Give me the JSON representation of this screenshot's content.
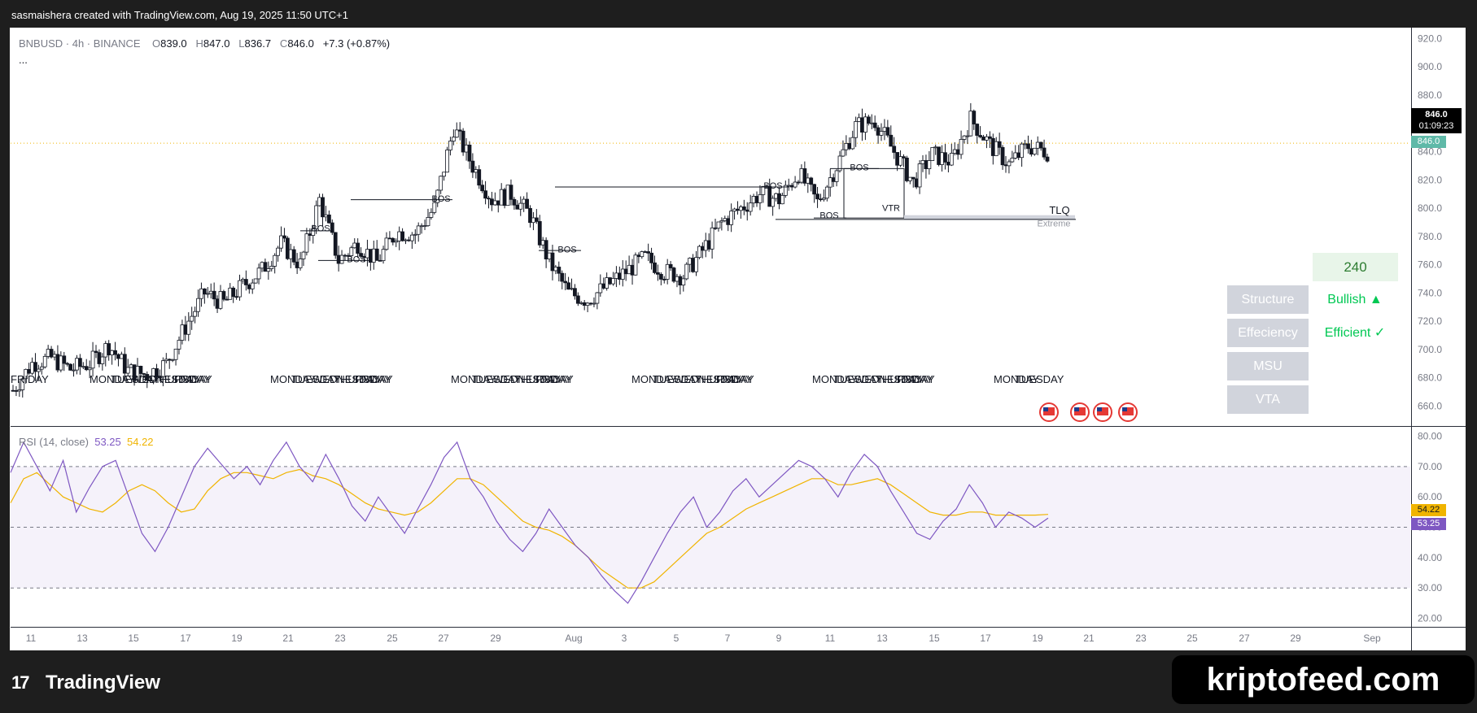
{
  "header": {
    "text": "sasmaishera created with TradingView.com, Aug 19, 2025 11:50 UTC+1"
  },
  "legend": {
    "symbol": "BNBUSD · 4h · BINANCE",
    "o_label": "O",
    "o": "839.0",
    "h_label": "H",
    "h": "847.0",
    "l_label": "L",
    "l": "836.7",
    "c_label": "C",
    "c": "846.0",
    "change": "+7.3 (+0.87%)",
    "more": "..."
  },
  "price_tag": {
    "price": "846.0",
    "countdown": "01:09:23",
    "last": "846.0"
  },
  "rsi_legend": {
    "label": "RSI (14, close)",
    "rsi": "53.25",
    "ma": "54.22"
  },
  "rsi_tags": {
    "ma": "54.22",
    "rsi": "53.25"
  },
  "panel": {
    "timeframe": "240",
    "rows": [
      {
        "label": "Structure",
        "value": "Bullish ▲"
      },
      {
        "label": "Effeciency",
        "value": "Efficient ✓"
      },
      {
        "label": "MSU",
        "value": ""
      },
      {
        "label": "VTA",
        "value": ""
      }
    ]
  },
  "annotations": {
    "bos": [
      "BOS",
      "BOS",
      "BOS",
      "BOS",
      "BOS",
      "BOS",
      "BOS"
    ],
    "tlq": "TLQ",
    "extreme": "Extreme",
    "vtr": "VTR"
  },
  "day_labels": [
    "MONDAY",
    "TUESDAY",
    "WEDNESDAY",
    "THURSDAY",
    "FRIDAY"
  ],
  "footer": {
    "logo": "TradingView",
    "brand": "kriptofeed.com"
  },
  "colors": {
    "up": "#ffffff",
    "down": "#131722",
    "rsi": "#7e57c2",
    "rsi_ma": "#f0b400",
    "rsi_band": "#7e57c2",
    "accent_green": "#00c853",
    "last_price": "#5fb9a8"
  },
  "chart_data": [
    {
      "type": "candlestick",
      "symbol": "BNBUSD",
      "timeframe": "4h",
      "exchange": "BINANCE",
      "x_ticks": [
        "11",
        "13",
        "15",
        "17",
        "19",
        "21",
        "23",
        "25",
        "27",
        "29",
        "Aug",
        "3",
        "5",
        "7",
        "9",
        "11",
        "13",
        "15",
        "17",
        "19",
        "21",
        "23",
        "25",
        "27",
        "29",
        "Sep"
      ],
      "y_ticks": [
        "920.0",
        "900.0",
        "880.0",
        "860.0",
        "840.0",
        "820.0",
        "800.0",
        "780.0",
        "760.0",
        "740.0",
        "720.0",
        "700.0",
        "680.0",
        "660.0"
      ],
      "ylim": [
        655,
        922
      ],
      "close_path": [
        {
          "x": 0,
          "y": 671
        },
        {
          "x": 1,
          "y": 690
        },
        {
          "x": 2,
          "y": 694
        },
        {
          "x": 3,
          "y": 686
        },
        {
          "x": 4,
          "y": 690
        },
        {
          "x": 5,
          "y": 703
        },
        {
          "x": 6,
          "y": 685
        },
        {
          "x": 7,
          "y": 682
        },
        {
          "x": 8,
          "y": 690
        },
        {
          "x": 9,
          "y": 716
        },
        {
          "x": 10,
          "y": 740
        },
        {
          "x": 11,
          "y": 733
        },
        {
          "x": 12,
          "y": 745
        },
        {
          "x": 13,
          "y": 756
        },
        {
          "x": 14,
          "y": 775
        },
        {
          "x": 15,
          "y": 760
        },
        {
          "x": 16,
          "y": 806
        },
        {
          "x": 17,
          "y": 763
        },
        {
          "x": 18,
          "y": 775
        },
        {
          "x": 19,
          "y": 762
        },
        {
          "x": 20,
          "y": 783
        },
        {
          "x": 21,
          "y": 782
        },
        {
          "x": 22,
          "y": 800
        },
        {
          "x": 23,
          "y": 857
        },
        {
          "x": 24,
          "y": 830
        },
        {
          "x": 25,
          "y": 806
        },
        {
          "x": 26,
          "y": 810
        },
        {
          "x": 27,
          "y": 795
        },
        {
          "x": 28,
          "y": 762
        },
        {
          "x": 29,
          "y": 740
        },
        {
          "x": 30,
          "y": 735
        },
        {
          "x": 31,
          "y": 745
        },
        {
          "x": 32,
          "y": 755
        },
        {
          "x": 33,
          "y": 765
        },
        {
          "x": 34,
          "y": 755
        },
        {
          "x": 35,
          "y": 752
        },
        {
          "x": 36,
          "y": 770
        },
        {
          "x": 37,
          "y": 790
        },
        {
          "x": 38,
          "y": 800
        },
        {
          "x": 39,
          "y": 810
        },
        {
          "x": 40,
          "y": 806
        },
        {
          "x": 41,
          "y": 825
        },
        {
          "x": 42,
          "y": 804
        },
        {
          "x": 43,
          "y": 830
        },
        {
          "x": 44,
          "y": 858
        },
        {
          "x": 45,
          "y": 862
        },
        {
          "x": 46,
          "y": 840
        },
        {
          "x": 47,
          "y": 818
        },
        {
          "x": 48,
          "y": 838
        },
        {
          "x": 49,
          "y": 833
        },
        {
          "x": 50,
          "y": 863
        },
        {
          "x": 51,
          "y": 845
        },
        {
          "x": 52,
          "y": 831
        },
        {
          "x": 53,
          "y": 844
        },
        {
          "x": 54,
          "y": 840
        }
      ],
      "last_price": 846.0,
      "levels": {
        "TLQ": 794,
        "Extreme": 791
      }
    },
    {
      "type": "line",
      "title": "RSI (14, close)",
      "series": [
        {
          "name": "RSI",
          "last": 53.25
        },
        {
          "name": "MA",
          "last": 54.22
        }
      ],
      "y_ticks": [
        "80.00",
        "70.00",
        "60.00",
        "50.00",
        "40.00",
        "30.00",
        "20.00"
      ],
      "ylim": [
        18,
        82
      ],
      "bands": [
        70,
        50,
        30
      ],
      "rsi": [
        68,
        78,
        70,
        62,
        72,
        55,
        63,
        70,
        72,
        60,
        48,
        42,
        50,
        60,
        70,
        76,
        71,
        66,
        70,
        64,
        72,
        78,
        70,
        65,
        74,
        66,
        57,
        52,
        60,
        54,
        48,
        56,
        64,
        73,
        78,
        66,
        60,
        52,
        46,
        42,
        48,
        56,
        50,
        44,
        40,
        34,
        29,
        25,
        32,
        40,
        48,
        55,
        60,
        50,
        55,
        62,
        66,
        60,
        64,
        68,
        72,
        70,
        66,
        60,
        68,
        74,
        70,
        62,
        55,
        48,
        46,
        52,
        56,
        64,
        58,
        50,
        55,
        53,
        50,
        53
      ],
      "ma": [
        58,
        66,
        68,
        64,
        60,
        58,
        56,
        55,
        58,
        62,
        64,
        62,
        58,
        55,
        56,
        62,
        66,
        68,
        68,
        67,
        66,
        68,
        69,
        67,
        66,
        64,
        61,
        58,
        56,
        55,
        54,
        55,
        58,
        62,
        66,
        66,
        64,
        60,
        56,
        52,
        50,
        49,
        47,
        44,
        40,
        36,
        33,
        30,
        30,
        32,
        36,
        40,
        44,
        48,
        50,
        53,
        56,
        58,
        60,
        62,
        64,
        66,
        66,
        64,
        64,
        65,
        66,
        64,
        61,
        58,
        55,
        54,
        54,
        55,
        55,
        54,
        54,
        54,
        54,
        54.22
      ]
    }
  ]
}
